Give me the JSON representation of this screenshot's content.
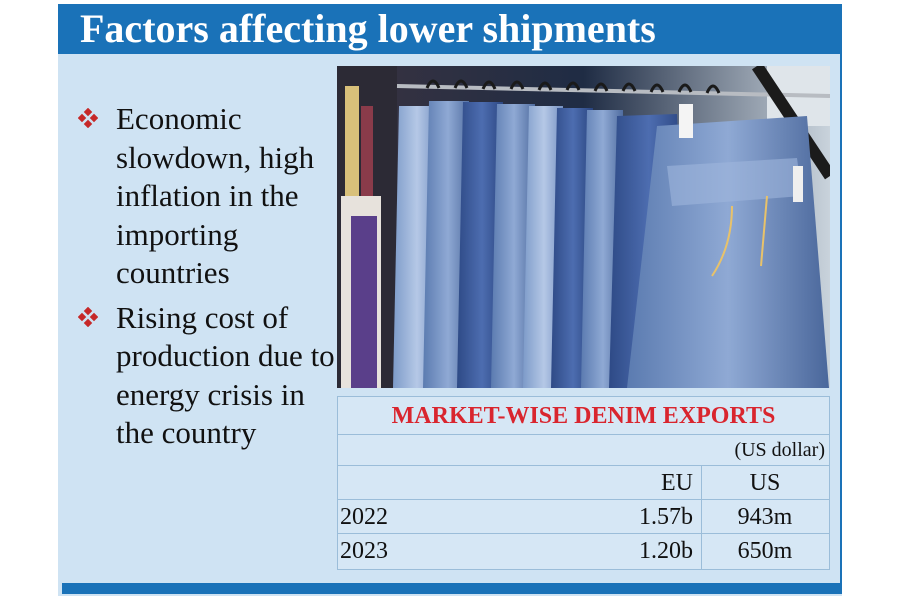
{
  "header": {
    "title": "Factors affecting lower shipments"
  },
  "colors": {
    "accent": "#1a72b8",
    "panel": "#cfe3f3",
    "bullet": "#c62828",
    "table_title": "#d9252e"
  },
  "bullets": [
    {
      "icon": "diamond-bullet-icon",
      "text": "Economic slowdown, high inflation in the importing countries"
    },
    {
      "icon": "diamond-bullet-icon",
      "text": "Rising cost of production due to energy crisis in the country"
    }
  ],
  "photo": {
    "subject": "jeans-on-rack-photo"
  },
  "table": {
    "title": "MARKET-WISE DENIM EXPORTS",
    "unit": "(US dollar)",
    "columns": [
      "EU",
      "US"
    ],
    "rows": [
      {
        "year": "2022",
        "eu": "1.57b",
        "us": "943m"
      },
      {
        "year": "2023",
        "eu": "1.20b",
        "us": "650m"
      }
    ]
  }
}
